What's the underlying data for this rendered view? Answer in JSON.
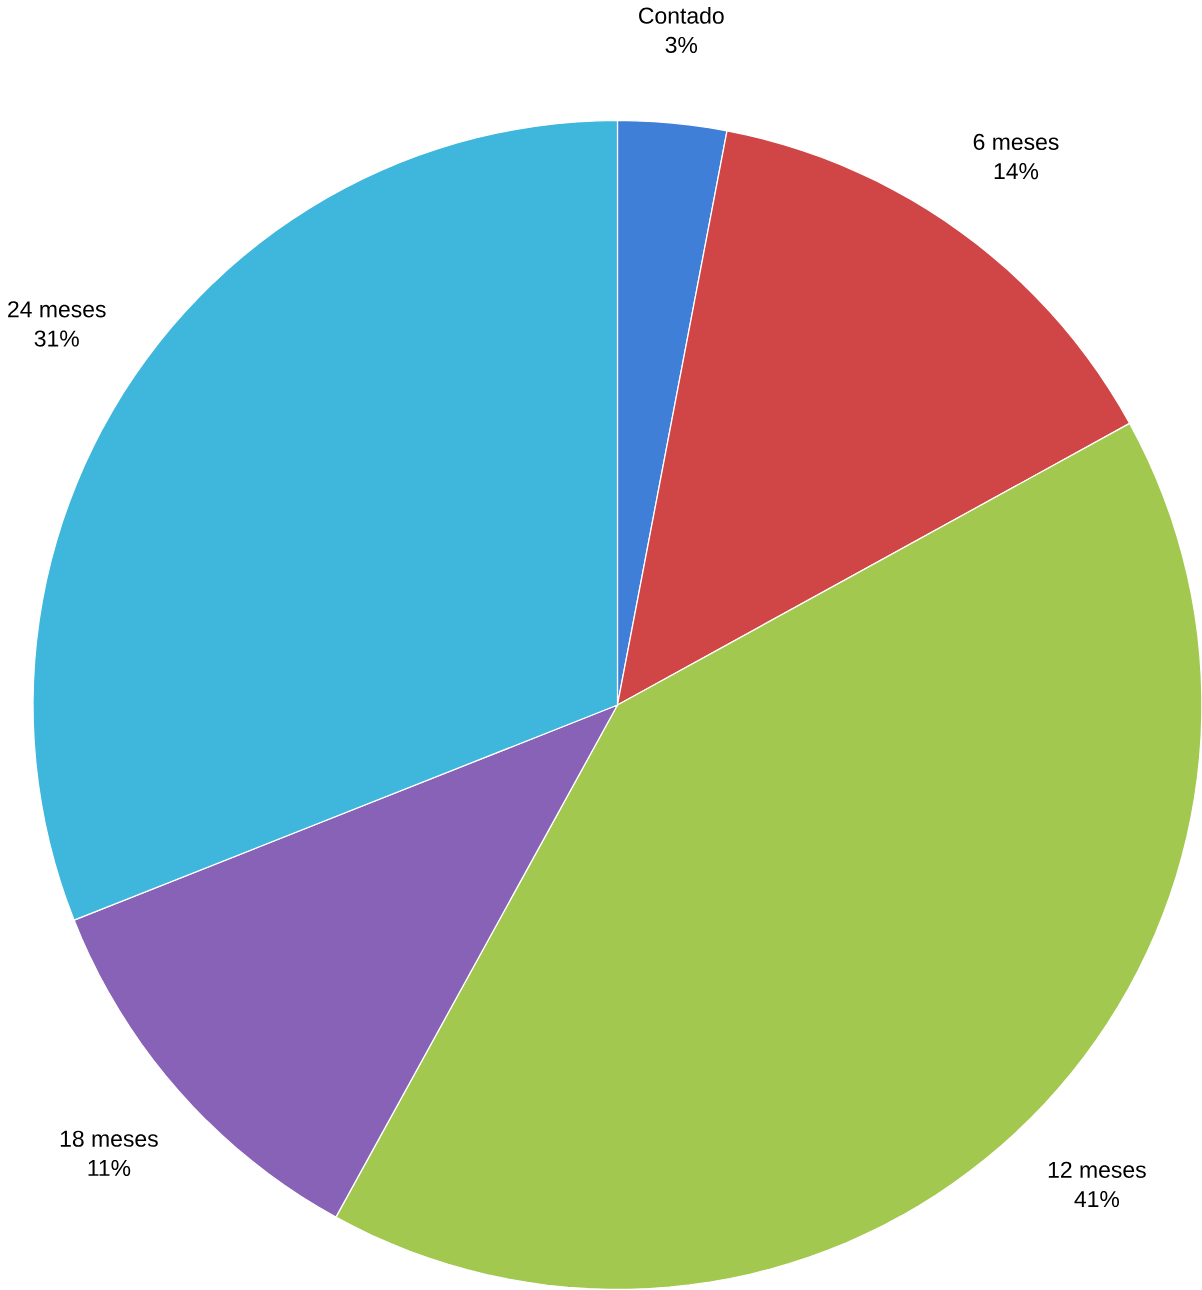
{
  "chart_data": {
    "type": "pie",
    "categories": [
      "Contado",
      "6 meses",
      "12 meses",
      "18 meses",
      "24 meses"
    ],
    "values": [
      3,
      14,
      41,
      11,
      31
    ],
    "value_labels": [
      "3%",
      "14%",
      "41%",
      "11%",
      "31%"
    ],
    "colors": [
      "#3f7fd8",
      "#d04545",
      "#a2c84f",
      "#8862b6",
      "#3fb6dc"
    ]
  }
}
